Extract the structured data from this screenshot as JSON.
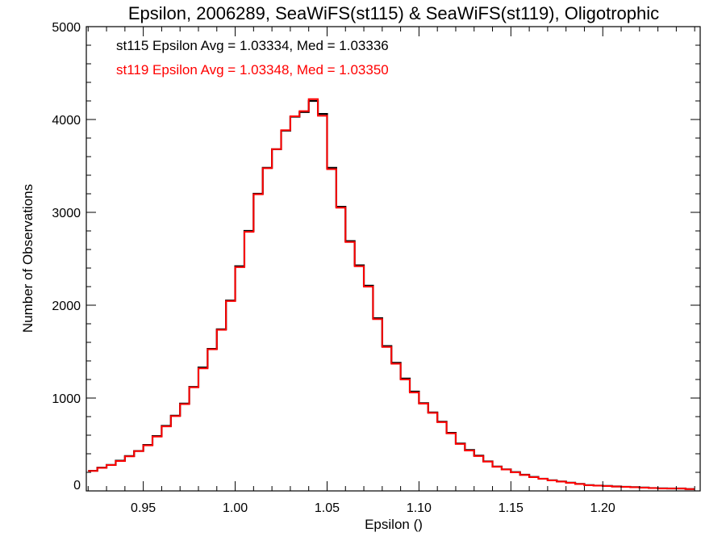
{
  "chart_data": {
    "type": "histogram",
    "title": "Epsilon, 2006289, SeaWiFS(st115) & SeaWiFS(st119), Oligotrophic",
    "xlabel": "Epsilon ()",
    "ylabel": "Number of Observations",
    "xlim": [
      0.919,
      1.253
    ],
    "ylim": [
      0,
      5000
    ],
    "xticks": [
      0.95,
      1.0,
      1.05,
      1.1,
      1.15,
      1.2
    ],
    "xtick_labels": [
      "0.95",
      "1.00",
      "1.05",
      "1.10",
      "1.15",
      "1.20"
    ],
    "yticks": [
      0,
      1000,
      2000,
      3000,
      4000,
      5000
    ],
    "ytick_labels": [
      "0",
      "1000",
      "2000",
      "3000",
      "4000",
      "5000"
    ],
    "grid": false,
    "bin_start": 0.92,
    "bin_width": 0.005,
    "annotations": [
      {
        "text": "st115 Epsilon Avg = 1.03334, Med = 1.03336",
        "color": "#000000"
      },
      {
        "text": "st119 Epsilon Avg = 1.03348, Med = 1.03350",
        "color": "#ff0000"
      }
    ],
    "series": [
      {
        "name": "st115",
        "color": "#000000",
        "values": [
          217,
          250,
          280,
          325,
          375,
          430,
          495,
          590,
          700,
          810,
          940,
          1120,
          1330,
          1530,
          1740,
          2050,
          2420,
          2800,
          3200,
          3480,
          3680,
          3880,
          4030,
          4080,
          4200,
          4060,
          3480,
          3060,
          2690,
          2430,
          2210,
          1860,
          1560,
          1380,
          1210,
          1070,
          945,
          845,
          745,
          625,
          510,
          440,
          380,
          318,
          262,
          232,
          202,
          174,
          150,
          131,
          114,
          101,
          88,
          75,
          62,
          57,
          53,
          48,
          44,
          40,
          36,
          31,
          27,
          26,
          26,
          20
        ]
      },
      {
        "name": "st119",
        "color": "#ff0000",
        "values": [
          215,
          248,
          278,
          322,
          372,
          428,
          490,
          585,
          695,
          805,
          935,
          1115,
          1320,
          1525,
          1735,
          2045,
          2410,
          2790,
          3195,
          3475,
          3680,
          3885,
          4035,
          4090,
          4220,
          4040,
          3465,
          3050,
          2680,
          2420,
          2200,
          1850,
          1550,
          1370,
          1200,
          1060,
          940,
          840,
          740,
          620,
          505,
          435,
          375,
          315,
          260,
          230,
          200,
          172,
          148,
          130,
          113,
          100,
          87,
          74,
          61,
          56,
          52,
          47,
          43,
          39,
          35,
          30,
          26,
          26,
          26,
          20
        ]
      }
    ]
  }
}
